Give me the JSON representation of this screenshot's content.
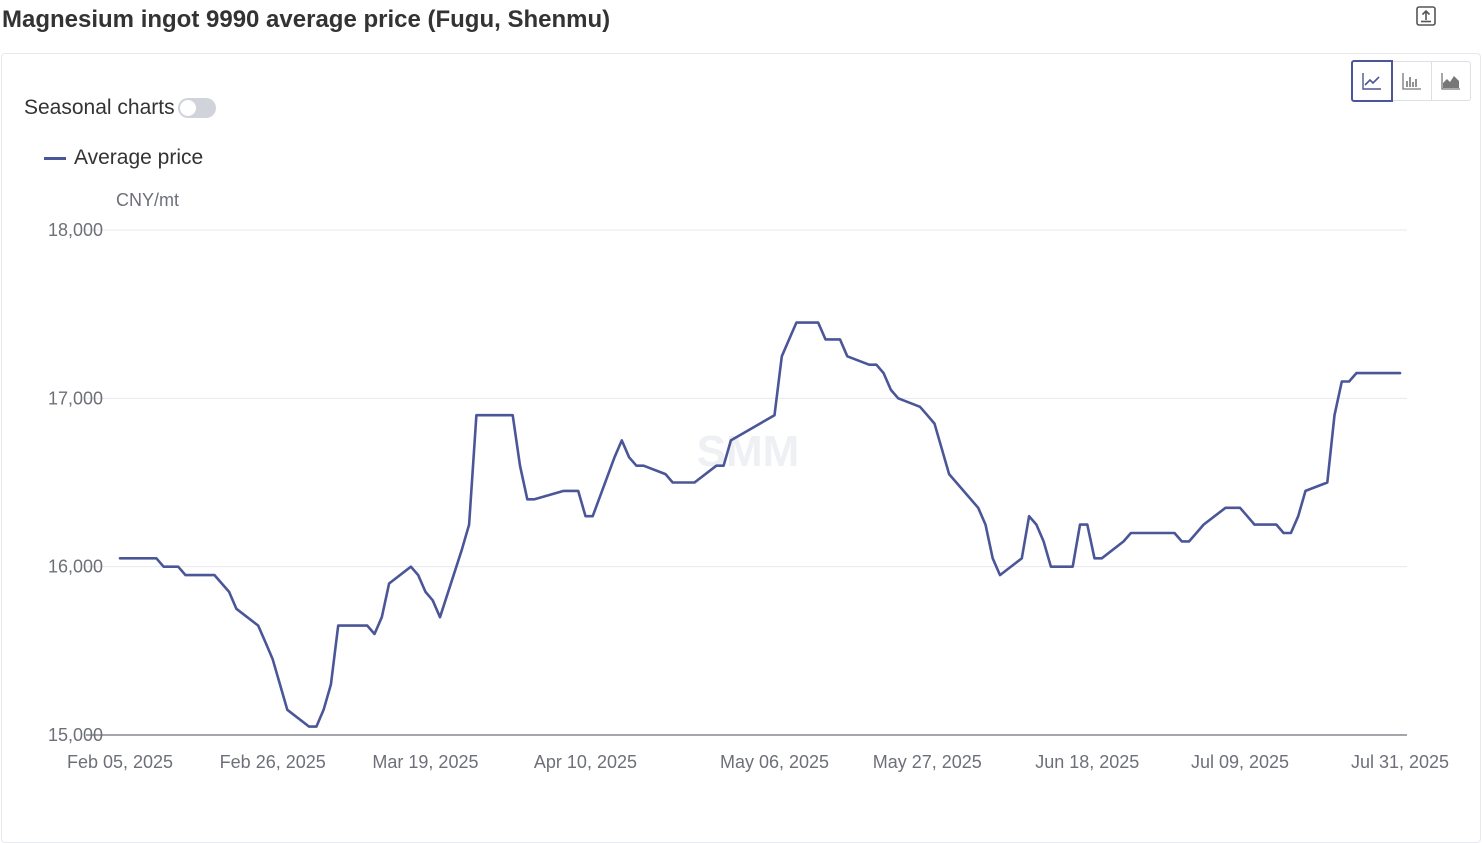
{
  "header": {
    "title": "Magnesium ingot 9990 average price (Fugu, Shenmu)",
    "export_icon": "export-icon"
  },
  "controls": {
    "seasonal_label": "Seasonal charts",
    "seasonal_on": false,
    "chart_types": [
      {
        "name": "line-chart-icon",
        "active": true
      },
      {
        "name": "bar-chart-icon",
        "active": false
      },
      {
        "name": "area-chart-icon",
        "active": false
      }
    ]
  },
  "watermark": "SMM",
  "colors": {
    "series": "#4a5697",
    "grid": "#e6e8ee",
    "axis": "#6e7079"
  },
  "chart_data": {
    "type": "line",
    "unit": "CNY/mt",
    "ylim": [
      15000,
      18000
    ],
    "yticks": [
      15000,
      16000,
      17000,
      18000
    ],
    "ytick_labels": [
      "15,000",
      "16,000",
      "17,000",
      "18,000"
    ],
    "xlim": [
      "2025-02-05",
      "2025-07-31"
    ],
    "xtick_dates": [
      "2025-02-05",
      "2025-02-26",
      "2025-03-19",
      "2025-04-10",
      "2025-05-06",
      "2025-05-27",
      "2025-06-18",
      "2025-07-09",
      "2025-07-31"
    ],
    "xtick_labels": [
      "Feb 05, 2025",
      "Feb 26, 2025",
      "Mar 19, 2025",
      "Apr 10, 2025",
      "May 06, 2025",
      "May 27, 2025",
      "Jun 18, 2025",
      "Jul 09, 2025",
      "Jul 31, 2025"
    ],
    "grid": true,
    "legend_position": "top-left",
    "series": [
      {
        "name": "Average price",
        "color": "#4a5697",
        "points": [
          [
            "2025-02-05",
            16050
          ],
          [
            "2025-02-06",
            16050
          ],
          [
            "2025-02-07",
            16050
          ],
          [
            "2025-02-10",
            16050
          ],
          [
            "2025-02-11",
            16000
          ],
          [
            "2025-02-12",
            16000
          ],
          [
            "2025-02-13",
            16000
          ],
          [
            "2025-02-14",
            15950
          ],
          [
            "2025-02-17",
            15950
          ],
          [
            "2025-02-18",
            15950
          ],
          [
            "2025-02-19",
            15900
          ],
          [
            "2025-02-20",
            15850
          ],
          [
            "2025-02-21",
            15750
          ],
          [
            "2025-02-24",
            15650
          ],
          [
            "2025-02-25",
            15550
          ],
          [
            "2025-02-26",
            15450
          ],
          [
            "2025-02-27",
            15300
          ],
          [
            "2025-02-28",
            15150
          ],
          [
            "2025-03-03",
            15050
          ],
          [
            "2025-03-04",
            15050
          ],
          [
            "2025-03-05",
            15150
          ],
          [
            "2025-03-06",
            15300
          ],
          [
            "2025-03-07",
            15650
          ],
          [
            "2025-03-10",
            15650
          ],
          [
            "2025-03-11",
            15650
          ],
          [
            "2025-03-12",
            15600
          ],
          [
            "2025-03-13",
            15700
          ],
          [
            "2025-03-14",
            15900
          ],
          [
            "2025-03-17",
            16000
          ],
          [
            "2025-03-18",
            15950
          ],
          [
            "2025-03-19",
            15850
          ],
          [
            "2025-03-20",
            15800
          ],
          [
            "2025-03-21",
            15700
          ],
          [
            "2025-03-24",
            16100
          ],
          [
            "2025-03-25",
            16250
          ],
          [
            "2025-03-26",
            16900
          ],
          [
            "2025-03-27",
            16900
          ],
          [
            "2025-03-28",
            16900
          ],
          [
            "2025-03-31",
            16900
          ],
          [
            "2025-04-01",
            16600
          ],
          [
            "2025-04-02",
            16400
          ],
          [
            "2025-04-03",
            16400
          ],
          [
            "2025-04-07",
            16450
          ],
          [
            "2025-04-08",
            16450
          ],
          [
            "2025-04-09",
            16450
          ],
          [
            "2025-04-10",
            16300
          ],
          [
            "2025-04-11",
            16300
          ],
          [
            "2025-04-14",
            16650
          ],
          [
            "2025-04-15",
            16750
          ],
          [
            "2025-04-16",
            16650
          ],
          [
            "2025-04-17",
            16600
          ],
          [
            "2025-04-18",
            16600
          ],
          [
            "2025-04-21",
            16550
          ],
          [
            "2025-04-22",
            16500
          ],
          [
            "2025-04-23",
            16500
          ],
          [
            "2025-04-24",
            16500
          ],
          [
            "2025-04-25",
            16500
          ],
          [
            "2025-04-28",
            16600
          ],
          [
            "2025-04-29",
            16600
          ],
          [
            "2025-04-30",
            16750
          ],
          [
            "2025-05-06",
            16900
          ],
          [
            "2025-05-07",
            17250
          ],
          [
            "2025-05-08",
            17350
          ],
          [
            "2025-05-09",
            17450
          ],
          [
            "2025-05-12",
            17450
          ],
          [
            "2025-05-13",
            17350
          ],
          [
            "2025-05-14",
            17350
          ],
          [
            "2025-05-15",
            17350
          ],
          [
            "2025-05-16",
            17250
          ],
          [
            "2025-05-19",
            17200
          ],
          [
            "2025-05-20",
            17200
          ],
          [
            "2025-05-21",
            17150
          ],
          [
            "2025-05-22",
            17050
          ],
          [
            "2025-05-23",
            17000
          ],
          [
            "2025-05-26",
            16950
          ],
          [
            "2025-05-27",
            16900
          ],
          [
            "2025-05-28",
            16850
          ],
          [
            "2025-05-29",
            16700
          ],
          [
            "2025-05-30",
            16550
          ],
          [
            "2025-06-03",
            16350
          ],
          [
            "2025-06-04",
            16250
          ],
          [
            "2025-06-05",
            16050
          ],
          [
            "2025-06-06",
            15950
          ],
          [
            "2025-06-09",
            16050
          ],
          [
            "2025-06-10",
            16300
          ],
          [
            "2025-06-11",
            16250
          ],
          [
            "2025-06-12",
            16150
          ],
          [
            "2025-06-13",
            16000
          ],
          [
            "2025-06-16",
            16000
          ],
          [
            "2025-06-17",
            16250
          ],
          [
            "2025-06-18",
            16250
          ],
          [
            "2025-06-19",
            16050
          ],
          [
            "2025-06-20",
            16050
          ],
          [
            "2025-06-23",
            16150
          ],
          [
            "2025-06-24",
            16200
          ],
          [
            "2025-06-25",
            16200
          ],
          [
            "2025-06-26",
            16200
          ],
          [
            "2025-06-27",
            16200
          ],
          [
            "2025-06-30",
            16200
          ],
          [
            "2025-07-01",
            16150
          ],
          [
            "2025-07-02",
            16150
          ],
          [
            "2025-07-03",
            16200
          ],
          [
            "2025-07-04",
            16250
          ],
          [
            "2025-07-07",
            16350
          ],
          [
            "2025-07-08",
            16350
          ],
          [
            "2025-07-09",
            16350
          ],
          [
            "2025-07-10",
            16300
          ],
          [
            "2025-07-11",
            16250
          ],
          [
            "2025-07-14",
            16250
          ],
          [
            "2025-07-15",
            16200
          ],
          [
            "2025-07-16",
            16200
          ],
          [
            "2025-07-17",
            16300
          ],
          [
            "2025-07-18",
            16450
          ],
          [
            "2025-07-21",
            16500
          ],
          [
            "2025-07-22",
            16900
          ],
          [
            "2025-07-23",
            17100
          ],
          [
            "2025-07-24",
            17100
          ],
          [
            "2025-07-25",
            17150
          ],
          [
            "2025-07-28",
            17150
          ],
          [
            "2025-07-29",
            17150
          ],
          [
            "2025-07-30",
            17150
          ],
          [
            "2025-07-31",
            17150
          ]
        ]
      }
    ]
  }
}
